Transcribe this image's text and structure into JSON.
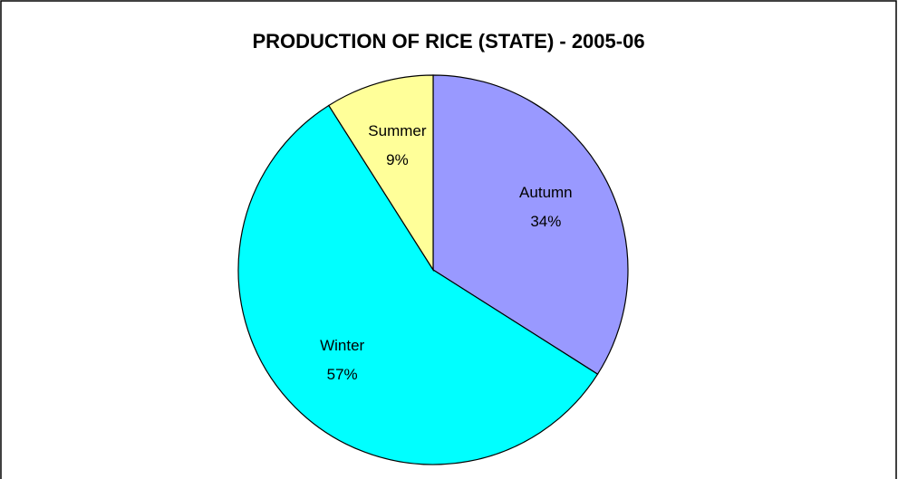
{
  "chart_data": {
    "type": "pie",
    "title": "PRODUCTION OF RICE (STATE) - 2005-06",
    "categories": [
      "Autumn",
      "Winter",
      "Summer"
    ],
    "values": [
      34,
      57,
      9
    ],
    "value_labels": [
      "34%",
      "57%",
      "9%"
    ],
    "colors": [
      "#9999ff",
      "#00ffff",
      "#ffff99"
    ]
  }
}
